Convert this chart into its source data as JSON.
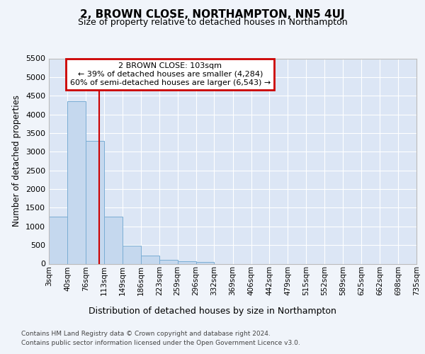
{
  "title": "2, BROWN CLOSE, NORTHAMPTON, NN5 4UJ",
  "subtitle": "Size of property relative to detached houses in Northampton",
  "xlabel": "Distribution of detached houses by size in Northampton",
  "ylabel": "Number of detached properties",
  "footer_line1": "Contains HM Land Registry data © Crown copyright and database right 2024.",
  "footer_line2": "Contains public sector information licensed under the Open Government Licence v3.0.",
  "annotation_title": "2 BROWN CLOSE: 103sqm",
  "annotation_line1": "← 39% of detached houses are smaller (4,284)",
  "annotation_line2": "60% of semi-detached houses are larger (6,543) →",
  "property_size": 103,
  "bin_edges": [
    3,
    40,
    76,
    113,
    149,
    186,
    223,
    259,
    296,
    332,
    369,
    406,
    442,
    479,
    515,
    552,
    589,
    625,
    662,
    698,
    735
  ],
  "bin_counts": [
    1260,
    4350,
    3300,
    1260,
    490,
    220,
    100,
    70,
    50,
    0,
    0,
    0,
    0,
    0,
    0,
    0,
    0,
    0,
    0,
    0
  ],
  "bar_color": "#c5d8ee",
  "bar_edge_color": "#7aadd4",
  "red_line_color": "#cc0000",
  "fig_bg_color": "#f0f4fa",
  "plot_bg_color": "#dce6f5",
  "grid_color": "#ffffff",
  "annotation_box_edge_color": "#cc0000",
  "annotation_box_face_color": "#ffffff",
  "ylim": [
    0,
    5500
  ],
  "yticks": [
    0,
    500,
    1000,
    1500,
    2000,
    2500,
    3000,
    3500,
    4000,
    4500,
    5000,
    5500
  ]
}
